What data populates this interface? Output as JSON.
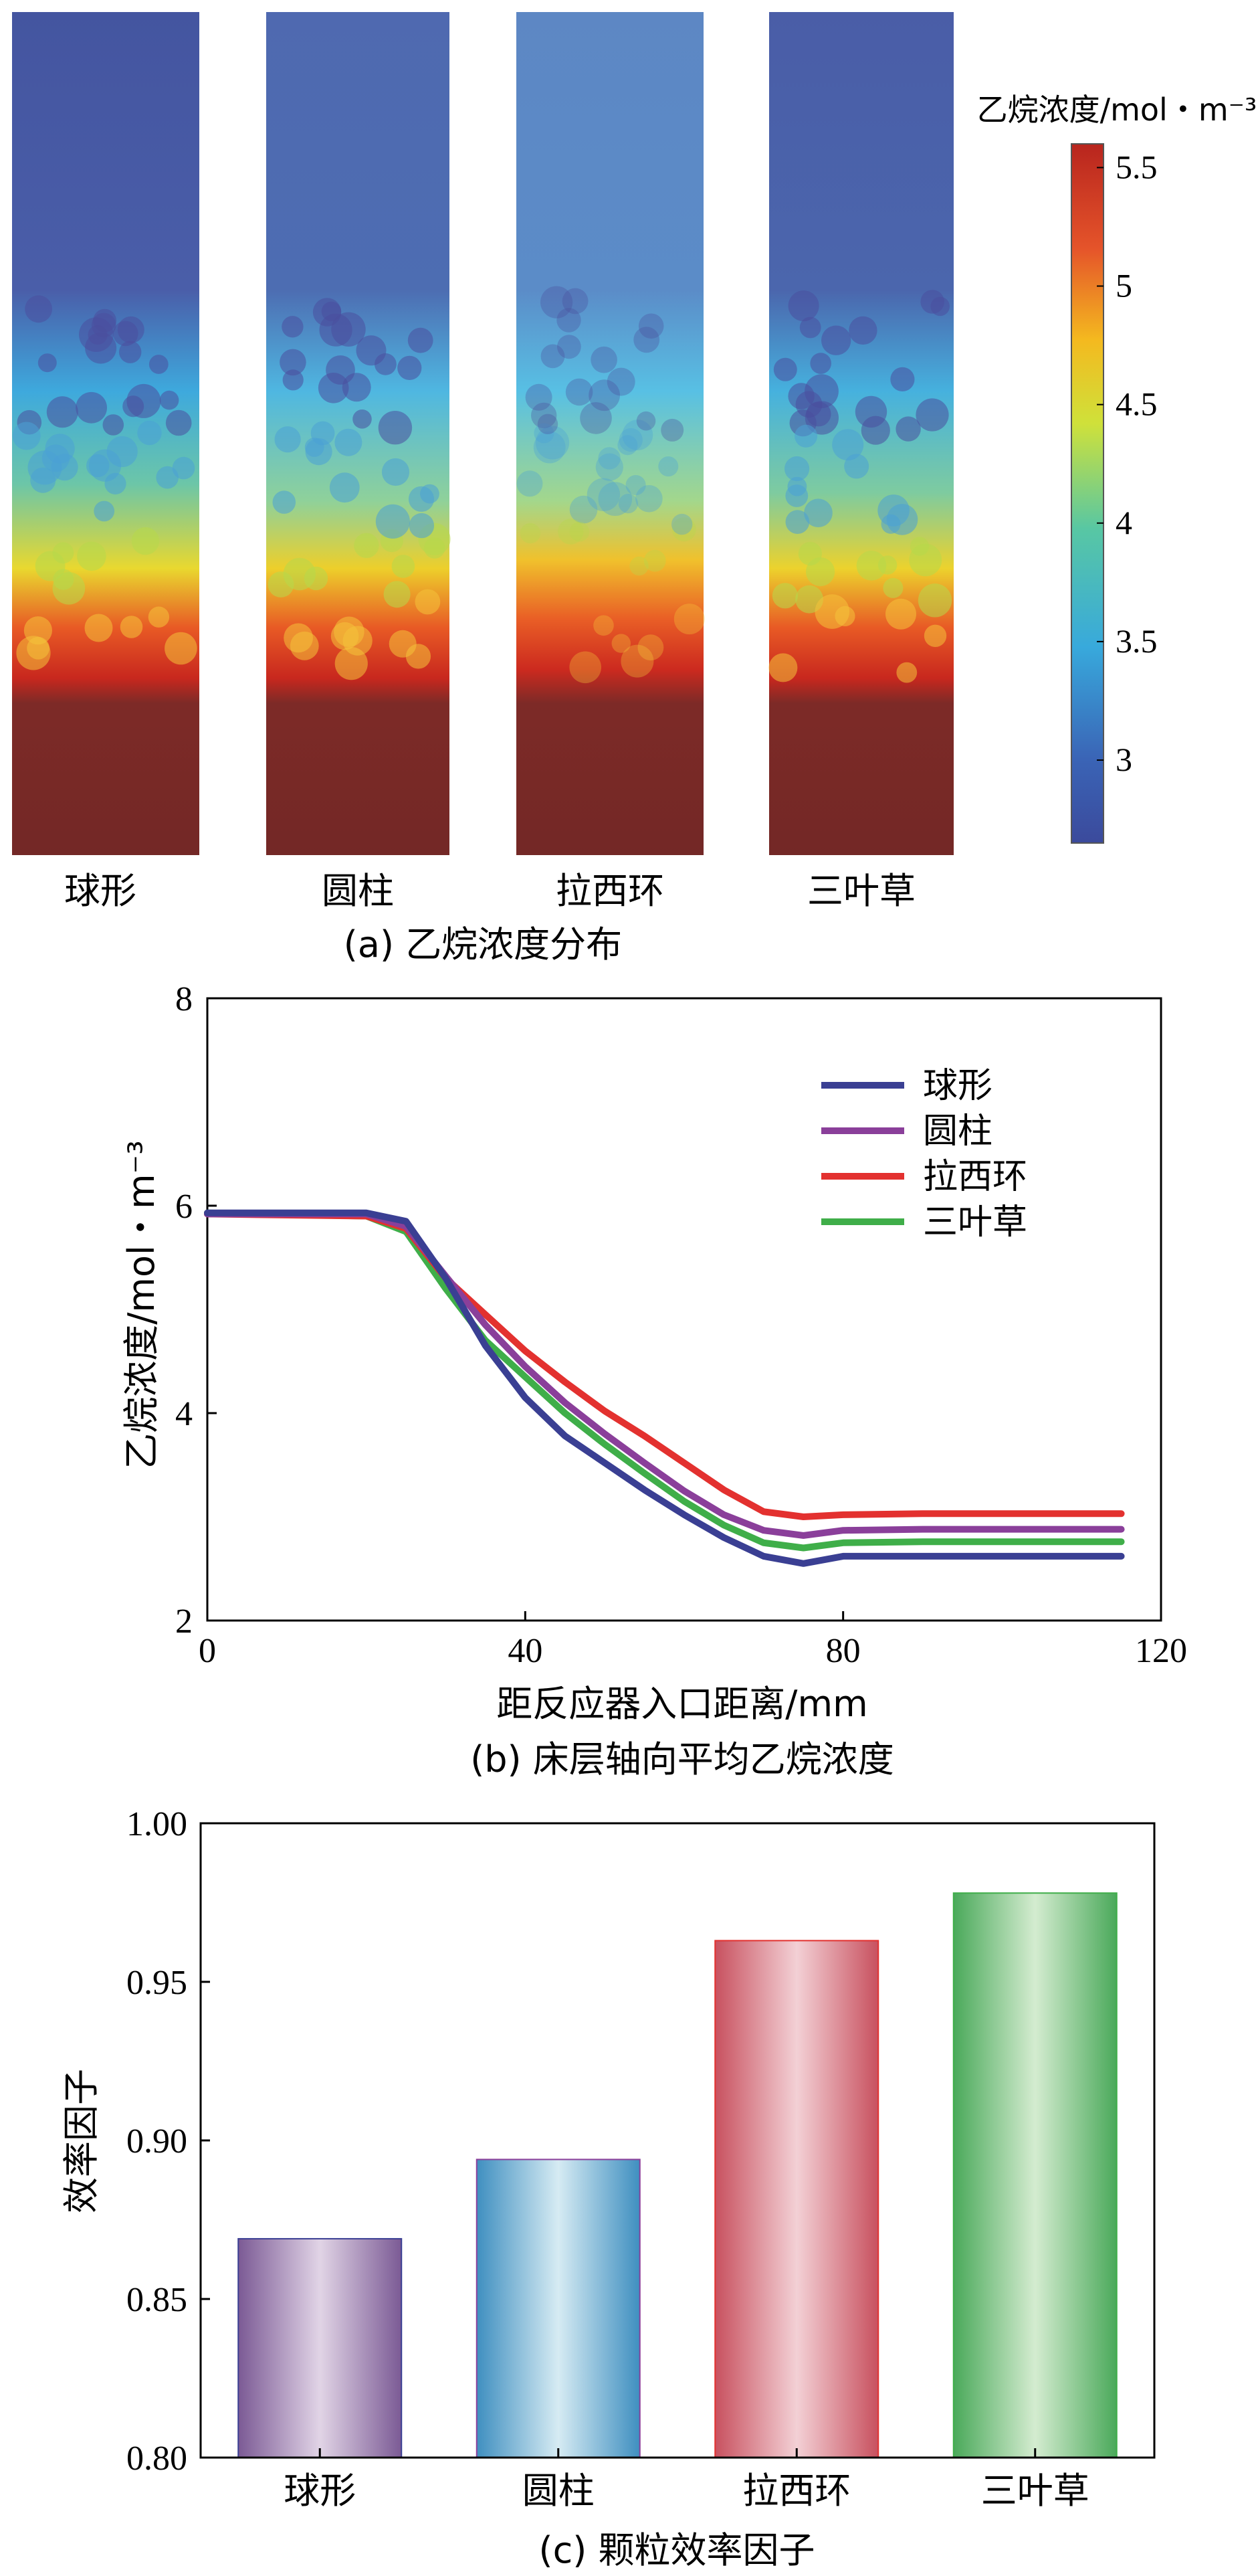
{
  "figure": {
    "panel_a_caption": "(a) 乙烷浓度分布",
    "panel_b_caption": "(b) 床层轴向平均乙烷浓度",
    "panel_c_caption": "(c) 颗粒效率因子"
  },
  "colors": {
    "sphere": "#3a3f93",
    "cylinder": "#8a3f9a",
    "raschig": "#e3312f",
    "trilobe": "#3fae49",
    "axis": "#000000"
  },
  "chart_data": [
    {
      "id": "a",
      "type": "heatmap",
      "title": "(a) 乙烷浓度分布",
      "panels": [
        "球形",
        "圆柱",
        "拉西环",
        "三叶草"
      ],
      "colorbar": {
        "label": "乙烷浓度/mol・m⁻³",
        "range": [
          2.65,
          5.6
        ],
        "ticks": [
          3,
          3.5,
          4,
          4.5,
          5,
          5.5
        ],
        "tick_labels": [
          "3",
          "3.5",
          "4",
          "4.5",
          "5",
          "5.5"
        ]
      }
    },
    {
      "id": "b",
      "type": "line",
      "title": "(b) 床层轴向平均乙烷浓度",
      "xlabel": "距反应器入口距离/mm",
      "ylabel": "乙烷浓度/mol・m⁻³",
      "xlim": [
        0,
        120
      ],
      "ylim": [
        2,
        8
      ],
      "xticks": [
        0,
        40,
        80,
        120
      ],
      "yticks": [
        2,
        4,
        6,
        8
      ],
      "legend": "top-right",
      "series": [
        {
          "name": "球形",
          "color_key": "sphere",
          "x": [
            0,
            20,
            25,
            30,
            35,
            40,
            45,
            50,
            55,
            60,
            65,
            70,
            75,
            80,
            90,
            100,
            110,
            115
          ],
          "y": [
            5.93,
            5.93,
            5.85,
            5.3,
            4.65,
            4.15,
            3.78,
            3.52,
            3.26,
            3.02,
            2.8,
            2.62,
            2.55,
            2.62,
            2.62,
            2.62,
            2.62,
            2.62
          ]
        },
        {
          "name": "圆柱",
          "color_key": "cylinder",
          "x": [
            0,
            20,
            25,
            30,
            35,
            40,
            45,
            50,
            55,
            60,
            65,
            70,
            75,
            80,
            90,
            100,
            110,
            115
          ],
          "y": [
            5.92,
            5.92,
            5.8,
            5.32,
            4.85,
            4.45,
            4.1,
            3.8,
            3.52,
            3.25,
            3.02,
            2.87,
            2.82,
            2.87,
            2.88,
            2.88,
            2.88,
            2.88
          ]
        },
        {
          "name": "拉西环",
          "color_key": "raschig",
          "x": [
            0,
            20,
            25,
            30,
            35,
            40,
            45,
            50,
            55,
            60,
            65,
            70,
            75,
            80,
            90,
            100,
            110,
            115
          ],
          "y": [
            5.92,
            5.9,
            5.78,
            5.3,
            4.95,
            4.6,
            4.3,
            4.02,
            3.78,
            3.52,
            3.26,
            3.05,
            3.0,
            3.02,
            3.03,
            3.03,
            3.03,
            3.03
          ]
        },
        {
          "name": "三叶草",
          "color_key": "trilobe",
          "x": [
            0,
            20,
            25,
            30,
            35,
            40,
            45,
            50,
            55,
            60,
            65,
            70,
            75,
            80,
            90,
            100,
            110,
            115
          ],
          "y": [
            5.93,
            5.9,
            5.75,
            5.2,
            4.7,
            4.35,
            4.0,
            3.7,
            3.42,
            3.15,
            2.92,
            2.75,
            2.7,
            2.75,
            2.76,
            2.76,
            2.76,
            2.76
          ]
        }
      ]
    },
    {
      "id": "c",
      "type": "bar",
      "title": "(c) 颗粒效率因子",
      "ylabel": "效率因子",
      "categories": [
        "球形",
        "圆柱",
        "拉西环",
        "三叶草"
      ],
      "values": [
        0.869,
        0.894,
        0.963,
        0.978
      ],
      "ylim": [
        0.8,
        1.0
      ],
      "yticks": [
        "0.80",
        "0.85",
        "0.90",
        "0.95",
        "1.00"
      ],
      "bar_color_keys": [
        "sphere",
        "cylinder",
        "raschig",
        "trilobe"
      ]
    }
  ]
}
